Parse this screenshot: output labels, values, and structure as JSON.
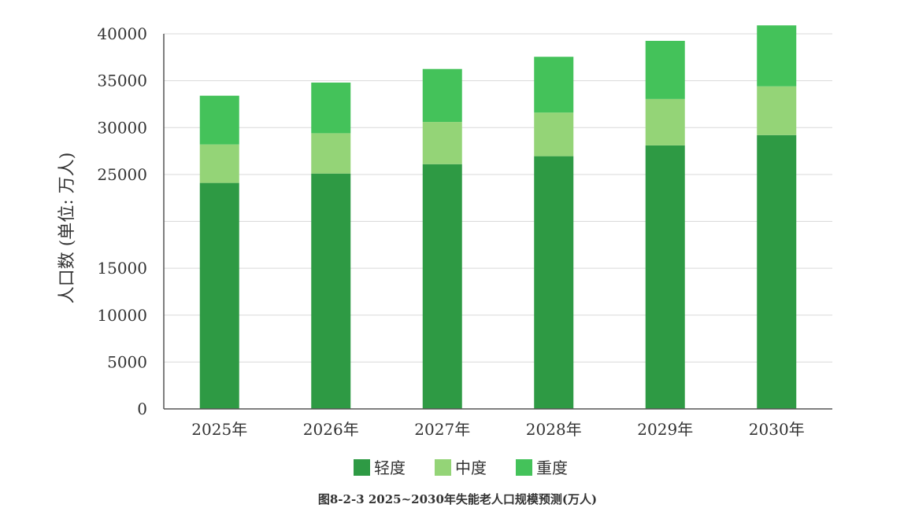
{
  "chart_data": {
    "type": "bar",
    "stacked": true,
    "title": "",
    "caption": "图8-2-3  2025~2030年失能老人口规模预测(万人)",
    "xlabel": "",
    "ylabel": "人口数 (单位: 万人)",
    "categories": [
      "2025年",
      "2026年",
      "2027年",
      "2028年",
      "2029年",
      "2030年"
    ],
    "series": [
      {
        "name": "轻度",
        "color": "#2e9a44",
        "values": [
          24100,
          25100,
          26100,
          26950,
          28100,
          29200
        ]
      },
      {
        "name": "中度",
        "color": "#94d477",
        "values": [
          4100,
          4300,
          4500,
          4650,
          4950,
          5200
        ]
      },
      {
        "name": "重度",
        "color": "#44c25a",
        "values": [
          5200,
          5400,
          5650,
          5950,
          6200,
          6500
        ]
      }
    ],
    "ylim": [
      0,
      40000
    ],
    "yticks": [
      0,
      5000,
      10000,
      15000,
      20000,
      25000,
      30000,
      35000,
      40000
    ],
    "ytick_labels": [
      "0",
      "5000",
      "10000",
      "15000",
      "",
      "25000",
      "30000",
      "35000",
      "40000"
    ],
    "grid": true,
    "legend_position": "bottom"
  }
}
